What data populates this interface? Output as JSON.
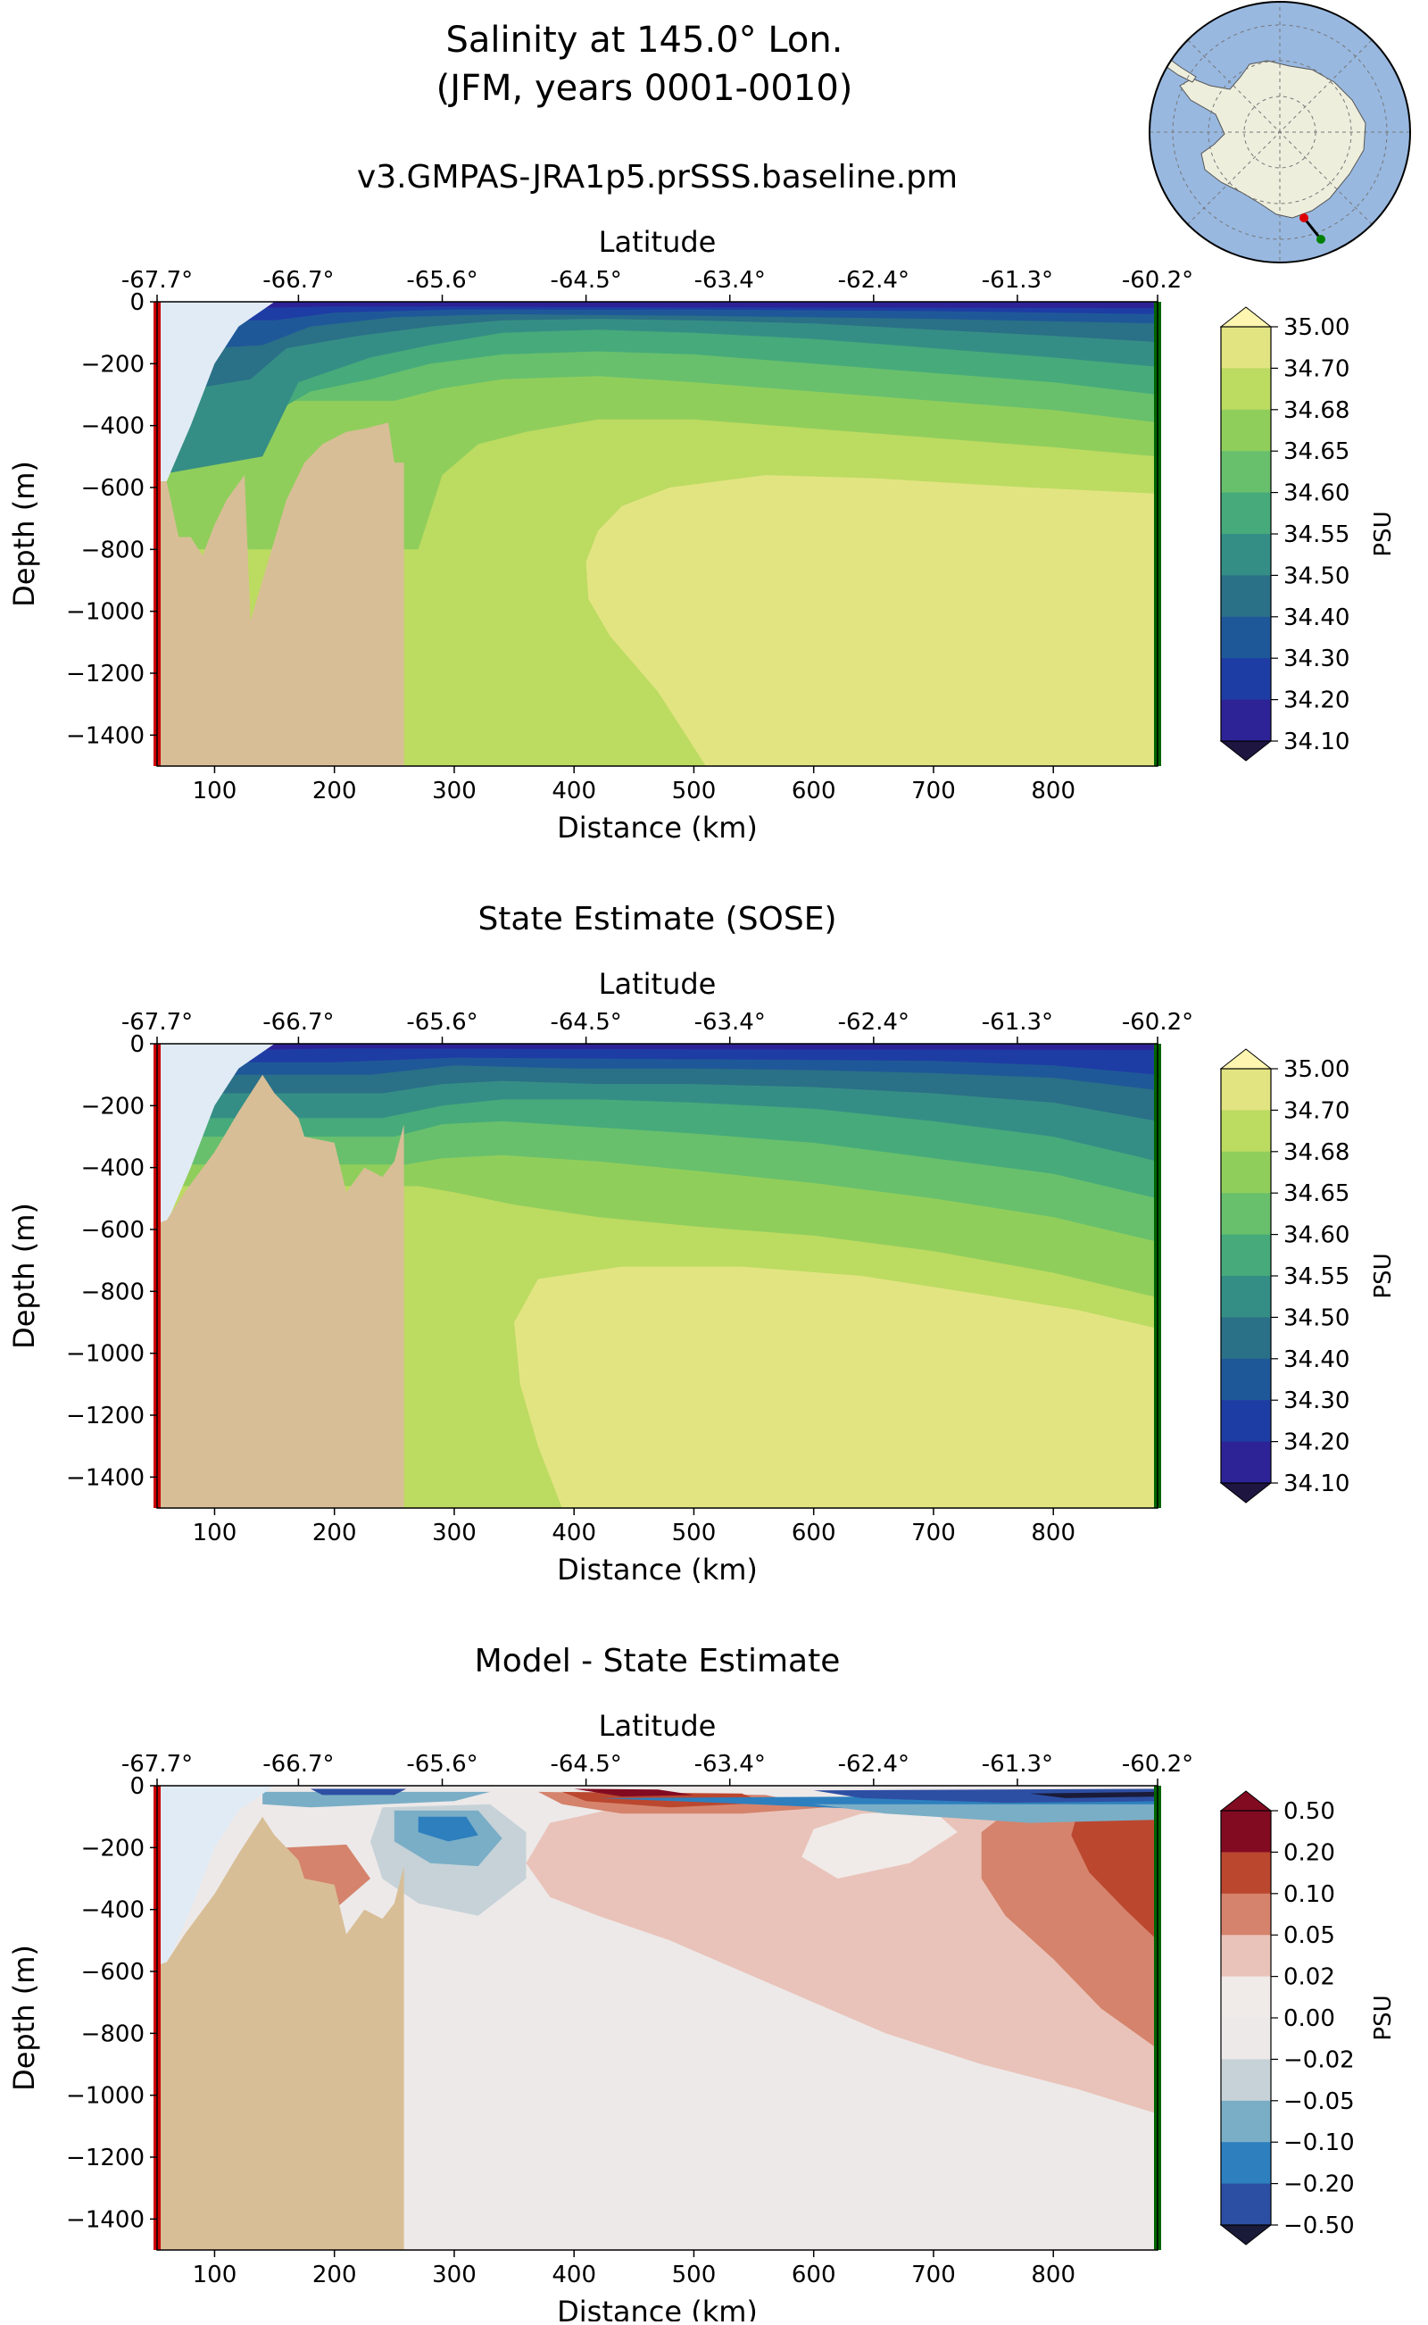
{
  "figure": {
    "title_line1": "Salinity at 145.0° Lon.",
    "title_line2": "(JFM, years 0001-0010)"
  },
  "chart_data": [
    {
      "type": "contour",
      "title": "v3.GMPAS-JRA1p5.prSSS.baseline.pm",
      "xlabel": "Distance (km)",
      "ylabel": "Depth (m)",
      "top_axis_label": "Latitude",
      "top_ticks": [
        "-67.7°",
        "-66.7°",
        "-65.6°",
        "-64.5°",
        "-63.4°",
        "-62.4°",
        "-61.3°",
        "-60.2°"
      ],
      "xticks": [
        100,
        200,
        300,
        400,
        500,
        600,
        700,
        800
      ],
      "yticks": [
        0,
        -200,
        -400,
        -600,
        -800,
        -1000,
        -1200,
        -1400
      ],
      "xlim": [
        52,
        887
      ],
      "ylim": [
        -1500,
        0
      ],
      "colorbar_label": "PSU",
      "colorbar_levels": [
        "35.00",
        "34.70",
        "34.68",
        "34.65",
        "34.60",
        "34.55",
        "34.50",
        "34.40",
        "34.30",
        "34.20",
        "34.10"
      ],
      "colorbar_colors": [
        "#e2e481",
        "#bcdb61",
        "#90ce5c",
        "#68c06c",
        "#46aa7b",
        "#358e85",
        "#2a7087",
        "#1f5898",
        "#1e3da4",
        "#2d2397",
        "#2b1b6a"
      ]
    },
    {
      "type": "contour",
      "title": "State Estimate (SOSE)",
      "xlabel": "Distance (km)",
      "ylabel": "Depth (m)",
      "top_axis_label": "Latitude",
      "top_ticks": [
        "-67.7°",
        "-66.7°",
        "-65.6°",
        "-64.5°",
        "-63.4°",
        "-62.4°",
        "-61.3°",
        "-60.2°"
      ],
      "xticks": [
        100,
        200,
        300,
        400,
        500,
        600,
        700,
        800
      ],
      "yticks": [
        0,
        -200,
        -400,
        -600,
        -800,
        -1000,
        -1200,
        -1400
      ],
      "xlim": [
        52,
        887
      ],
      "ylim": [
        -1500,
        0
      ],
      "colorbar_label": "PSU",
      "colorbar_levels": [
        "35.00",
        "34.70",
        "34.68",
        "34.65",
        "34.60",
        "34.55",
        "34.50",
        "34.40",
        "34.30",
        "34.20",
        "34.10"
      ],
      "colorbar_colors": [
        "#e2e481",
        "#bcdb61",
        "#90ce5c",
        "#68c06c",
        "#46aa7b",
        "#358e85",
        "#2a7087",
        "#1f5898",
        "#1e3da4",
        "#2d2397",
        "#2b1b6a"
      ]
    },
    {
      "type": "contour",
      "title": "Model - State Estimate",
      "xlabel": "Distance (km)",
      "ylabel": "Depth (m)",
      "top_axis_label": "Latitude",
      "top_ticks": [
        "-67.7°",
        "-66.7°",
        "-65.6°",
        "-64.5°",
        "-63.4°",
        "-62.4°",
        "-61.3°",
        "-60.2°"
      ],
      "xticks": [
        100,
        200,
        300,
        400,
        500,
        600,
        700,
        800
      ],
      "yticks": [
        0,
        -200,
        -400,
        -600,
        -800,
        -1000,
        -1200,
        -1400
      ],
      "xlim": [
        52,
        887
      ],
      "ylim": [
        -1500,
        0
      ],
      "colorbar_label": "PSU",
      "colorbar_levels": [
        "0.50",
        "0.20",
        "0.10",
        "0.05",
        "0.02",
        "0.00",
        "−0.02",
        "−0.05",
        "−0.10",
        "−0.20",
        "−0.50"
      ],
      "colorbar_colors": [
        "#820b22",
        "#bb472f",
        "#d5836c",
        "#e9c3b9",
        "#f0eae8",
        "#ede9e9",
        "#c6d2d8",
        "#7aaec6",
        "#2d7fbe",
        "#2d4fa3",
        "#1a1b38"
      ]
    }
  ],
  "colors": {
    "land": "#d8be96",
    "ice_shelf": "#e1ebf5",
    "start_marker": "#cc0000",
    "end_marker": "#006400",
    "ocean_map": "#98b8e0",
    "antarctica": "#eeeedd"
  },
  "inset_map": {
    "description_icon": "antarctica-location-map"
  }
}
